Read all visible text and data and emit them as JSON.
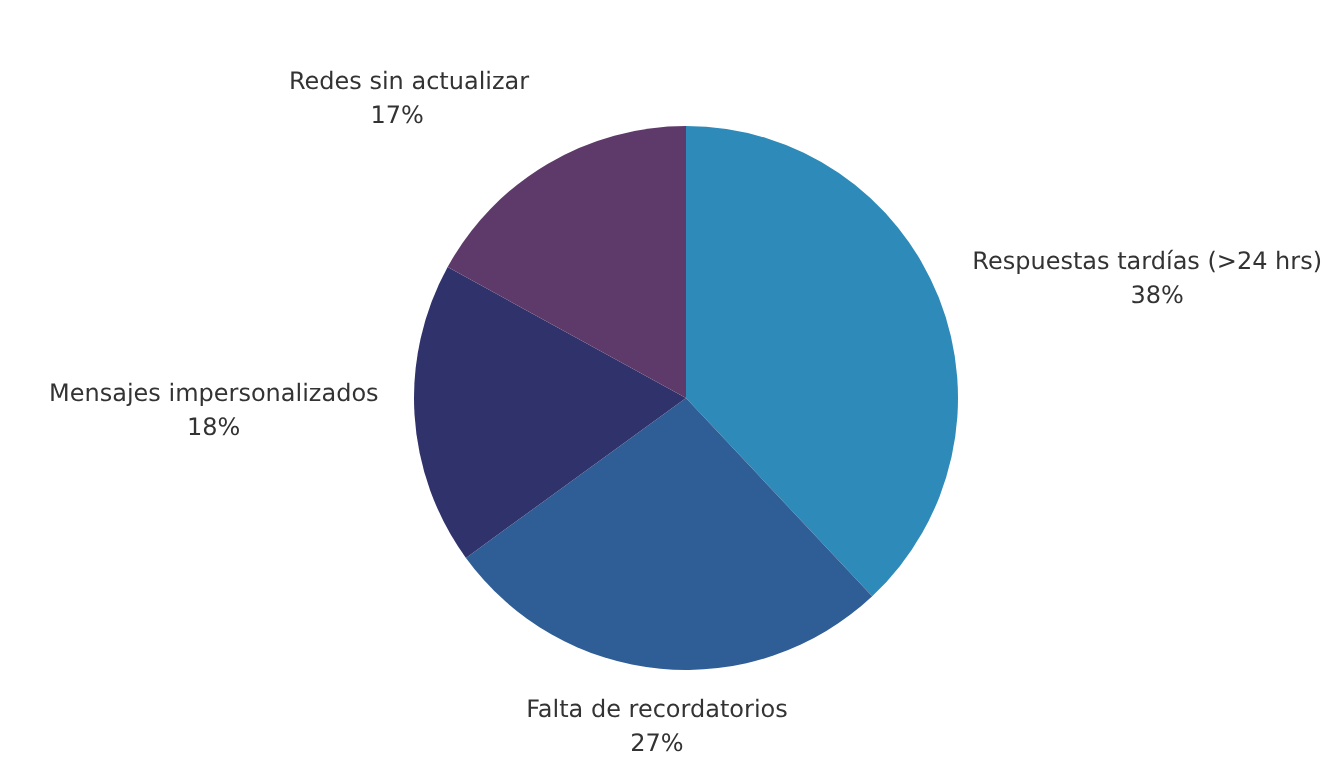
{
  "chart_data": {
    "type": "pie",
    "categories": [
      "Respuestas tardías (>24 hrs)",
      "Falta de recordatorios",
      "Mensajes impersonalizados",
      "Redes sin actualizar"
    ],
    "values": [
      38,
      27,
      18,
      17
    ],
    "value_labels": [
      "38%",
      "27%",
      "18%",
      "17%"
    ],
    "colors": [
      "#2e8ab8",
      "#2f5d96",
      "#2f326b",
      "#5e3a6a"
    ],
    "legend": false
  }
}
